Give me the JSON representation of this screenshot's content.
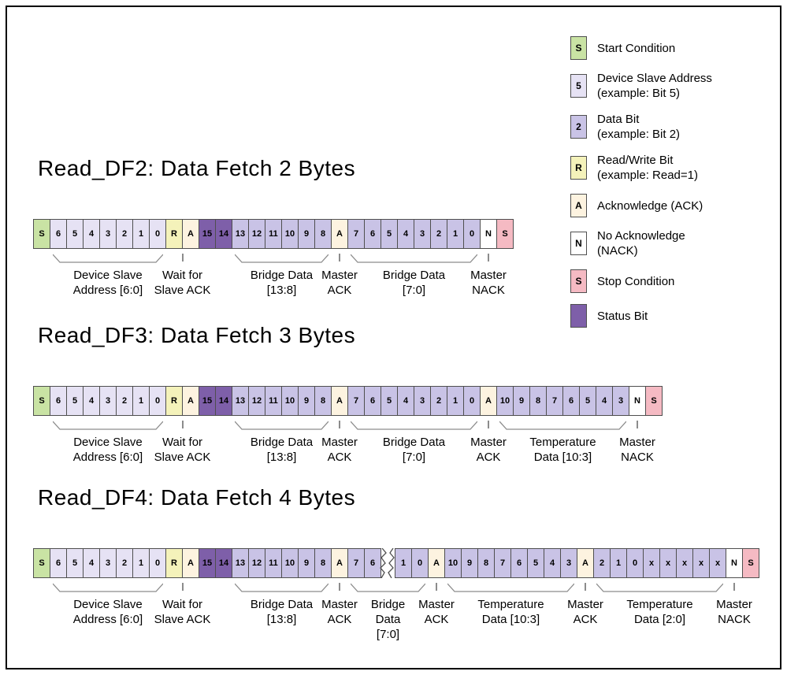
{
  "colors": {
    "start": "#c9e3a4",
    "addr": "#e6e2f4",
    "data": "#c9c3e6",
    "rw": "#f4f2ba",
    "ack": "#fdf3e0",
    "nack": "#ffffff",
    "stop": "#f5bac3",
    "status": "#7e5fa9",
    "border": "#4f4f4f",
    "marker": "#8c8c8c"
  },
  "legend": {
    "items": [
      {
        "symbol": "S",
        "type": "start",
        "lines": [
          "Start Condition"
        ]
      },
      {
        "symbol": "5",
        "type": "addr",
        "lines": [
          "Device Slave Address",
          "(example: Bit 5)"
        ]
      },
      {
        "symbol": "2",
        "type": "data",
        "lines": [
          "Data Bit",
          "(example: Bit 2)"
        ]
      },
      {
        "symbol": "R",
        "type": "rw",
        "lines": [
          "Read/Write Bit",
          "(example: Read=1)"
        ]
      },
      {
        "symbol": "A",
        "type": "ack",
        "lines": [
          "Acknowledge (ACK)"
        ]
      },
      {
        "symbol": "N",
        "type": "nack",
        "lines": [
          "No Acknowledge",
          "(NACK)"
        ]
      },
      {
        "symbol": "S",
        "type": "stop",
        "lines": [
          "Stop Condition"
        ]
      },
      {
        "symbol": "",
        "type": "status",
        "lines": [
          "Status Bit"
        ]
      }
    ]
  },
  "diagrams": [
    {
      "title": "Read_DF2: Data Fetch 2 Bytes",
      "cells": [
        {
          "t": "S",
          "c": "start"
        },
        {
          "t": "6",
          "c": "addr"
        },
        {
          "t": "5",
          "c": "addr"
        },
        {
          "t": "4",
          "c": "addr"
        },
        {
          "t": "3",
          "c": "addr"
        },
        {
          "t": "2",
          "c": "addr"
        },
        {
          "t": "1",
          "c": "addr"
        },
        {
          "t": "0",
          "c": "addr"
        },
        {
          "t": "R",
          "c": "rw"
        },
        {
          "t": "A",
          "c": "ack"
        },
        {
          "t": "15",
          "c": "status"
        },
        {
          "t": "14",
          "c": "status"
        },
        {
          "t": "13",
          "c": "data"
        },
        {
          "t": "12",
          "c": "data"
        },
        {
          "t": "11",
          "c": "data"
        },
        {
          "t": "10",
          "c": "data"
        },
        {
          "t": "9",
          "c": "data"
        },
        {
          "t": "8",
          "c": "data"
        },
        {
          "t": "A",
          "c": "ack"
        },
        {
          "t": "7",
          "c": "data"
        },
        {
          "t": "6",
          "c": "data"
        },
        {
          "t": "5",
          "c": "data"
        },
        {
          "t": "4",
          "c": "data"
        },
        {
          "t": "3",
          "c": "data"
        },
        {
          "t": "2",
          "c": "data"
        },
        {
          "t": "1",
          "c": "data"
        },
        {
          "t": "0",
          "c": "data"
        },
        {
          "t": "N",
          "c": "nack"
        },
        {
          "t": "S",
          "c": "stop"
        }
      ],
      "groups": [
        {
          "type": "brace",
          "start": 1,
          "end": 7,
          "lines": [
            "Device Slave",
            "Address [6:0]"
          ]
        },
        {
          "type": "tick",
          "start": 8,
          "end": 9,
          "lines": [
            "Wait for",
            "Slave ACK"
          ]
        },
        {
          "type": "brace",
          "start": 12,
          "end": 17,
          "lines": [
            "Bridge Data",
            "[13:8]"
          ]
        },
        {
          "type": "tick",
          "start": 18,
          "end": 18,
          "lines": [
            "Master",
            "ACK"
          ]
        },
        {
          "type": "brace",
          "start": 19,
          "end": 26,
          "lines": [
            "Bridge Data",
            "[7:0]"
          ]
        },
        {
          "type": "tick",
          "start": 27,
          "end": 27,
          "lines": [
            "Master",
            "NACK"
          ]
        }
      ]
    },
    {
      "title": "Read_DF3: Data Fetch 3 Bytes",
      "cells": [
        {
          "t": "S",
          "c": "start"
        },
        {
          "t": "6",
          "c": "addr"
        },
        {
          "t": "5",
          "c": "addr"
        },
        {
          "t": "4",
          "c": "addr"
        },
        {
          "t": "3",
          "c": "addr"
        },
        {
          "t": "2",
          "c": "addr"
        },
        {
          "t": "1",
          "c": "addr"
        },
        {
          "t": "0",
          "c": "addr"
        },
        {
          "t": "R",
          "c": "rw"
        },
        {
          "t": "A",
          "c": "ack"
        },
        {
          "t": "15",
          "c": "status"
        },
        {
          "t": "14",
          "c": "status"
        },
        {
          "t": "13",
          "c": "data"
        },
        {
          "t": "12",
          "c": "data"
        },
        {
          "t": "11",
          "c": "data"
        },
        {
          "t": "10",
          "c": "data"
        },
        {
          "t": "9",
          "c": "data"
        },
        {
          "t": "8",
          "c": "data"
        },
        {
          "t": "A",
          "c": "ack"
        },
        {
          "t": "7",
          "c": "data"
        },
        {
          "t": "6",
          "c": "data"
        },
        {
          "t": "5",
          "c": "data"
        },
        {
          "t": "4",
          "c": "data"
        },
        {
          "t": "3",
          "c": "data"
        },
        {
          "t": "2",
          "c": "data"
        },
        {
          "t": "1",
          "c": "data"
        },
        {
          "t": "0",
          "c": "data"
        },
        {
          "t": "A",
          "c": "ack"
        },
        {
          "t": "10",
          "c": "data"
        },
        {
          "t": "9",
          "c": "data"
        },
        {
          "t": "8",
          "c": "data"
        },
        {
          "t": "7",
          "c": "data"
        },
        {
          "t": "6",
          "c": "data"
        },
        {
          "t": "5",
          "c": "data"
        },
        {
          "t": "4",
          "c": "data"
        },
        {
          "t": "3",
          "c": "data"
        },
        {
          "t": "N",
          "c": "nack"
        },
        {
          "t": "S",
          "c": "stop"
        }
      ],
      "groups": [
        {
          "type": "brace",
          "start": 1,
          "end": 7,
          "lines": [
            "Device Slave",
            "Address [6:0]"
          ]
        },
        {
          "type": "tick",
          "start": 8,
          "end": 9,
          "lines": [
            "Wait for",
            "Slave ACK"
          ]
        },
        {
          "type": "brace",
          "start": 12,
          "end": 17,
          "lines": [
            "Bridge Data",
            "[13:8]"
          ]
        },
        {
          "type": "tick",
          "start": 18,
          "end": 18,
          "lines": [
            "Master",
            "ACK"
          ]
        },
        {
          "type": "brace",
          "start": 19,
          "end": 26,
          "lines": [
            "Bridge Data",
            "[7:0]"
          ]
        },
        {
          "type": "tick",
          "start": 27,
          "end": 27,
          "lines": [
            "Master",
            "ACK"
          ]
        },
        {
          "type": "brace",
          "start": 28,
          "end": 35,
          "lines": [
            "Temperature",
            "Data [10:3]"
          ]
        },
        {
          "type": "tick",
          "start": 36,
          "end": 36,
          "lines": [
            "Master",
            "NACK"
          ]
        }
      ]
    },
    {
      "title": "Read_DF4: Data Fetch 4 Bytes",
      "cells": [
        {
          "t": "S",
          "c": "start"
        },
        {
          "t": "6",
          "c": "addr"
        },
        {
          "t": "5",
          "c": "addr"
        },
        {
          "t": "4",
          "c": "addr"
        },
        {
          "t": "3",
          "c": "addr"
        },
        {
          "t": "2",
          "c": "addr"
        },
        {
          "t": "1",
          "c": "addr"
        },
        {
          "t": "0",
          "c": "addr"
        },
        {
          "t": "R",
          "c": "rw"
        },
        {
          "t": "A",
          "c": "ack"
        },
        {
          "t": "15",
          "c": "status"
        },
        {
          "t": "14",
          "c": "status"
        },
        {
          "t": "13",
          "c": "data"
        },
        {
          "t": "12",
          "c": "data"
        },
        {
          "t": "11",
          "c": "data"
        },
        {
          "t": "10",
          "c": "data"
        },
        {
          "t": "9",
          "c": "data"
        },
        {
          "t": "8",
          "c": "data"
        },
        {
          "t": "A",
          "c": "ack"
        },
        {
          "t": "7",
          "c": "data"
        },
        {
          "t": "6",
          "c": "data"
        },
        {
          "tear": true
        },
        {
          "t": "1",
          "c": "data"
        },
        {
          "t": "0",
          "c": "data"
        },
        {
          "t": "A",
          "c": "ack"
        },
        {
          "t": "10",
          "c": "data"
        },
        {
          "t": "9",
          "c": "data"
        },
        {
          "t": "8",
          "c": "data"
        },
        {
          "t": "7",
          "c": "data"
        },
        {
          "t": "6",
          "c": "data"
        },
        {
          "t": "5",
          "c": "data"
        },
        {
          "t": "4",
          "c": "data"
        },
        {
          "t": "3",
          "c": "data"
        },
        {
          "t": "A",
          "c": "ack"
        },
        {
          "t": "2",
          "c": "data"
        },
        {
          "t": "1",
          "c": "data"
        },
        {
          "t": "0",
          "c": "data"
        },
        {
          "t": "x",
          "c": "data"
        },
        {
          "t": "x",
          "c": "data"
        },
        {
          "t": "x",
          "c": "data"
        },
        {
          "t": "x",
          "c": "data"
        },
        {
          "t": "x",
          "c": "data"
        },
        {
          "t": "N",
          "c": "nack"
        },
        {
          "t": "S",
          "c": "stop"
        }
      ],
      "groups": [
        {
          "type": "brace",
          "start": 1,
          "end": 7,
          "lines": [
            "Device Slave",
            "Address [6:0]"
          ]
        },
        {
          "type": "tick",
          "start": 8,
          "end": 9,
          "lines": [
            "Wait for",
            "Slave ACK"
          ]
        },
        {
          "type": "brace",
          "start": 12,
          "end": 17,
          "lines": [
            "Bridge Data",
            "[13:8]"
          ]
        },
        {
          "type": "tick",
          "start": 18,
          "end": 18,
          "lines": [
            "Master",
            "ACK"
          ]
        },
        {
          "type": "brace",
          "start": 19,
          "end": 23,
          "lines": [
            "Bridge",
            "Data",
            "[7:0]"
          ]
        },
        {
          "type": "tick",
          "start": 24,
          "end": 24,
          "lines": [
            "Master",
            "ACK"
          ]
        },
        {
          "type": "brace",
          "start": 25,
          "end": 32,
          "lines": [
            "Temperature",
            "Data [10:3]"
          ]
        },
        {
          "type": "tick",
          "start": 33,
          "end": 33,
          "lines": [
            "Master",
            "ACK"
          ]
        },
        {
          "type": "brace",
          "start": 34,
          "end": 41,
          "lines": [
            "Temperature",
            "Data [2:0]"
          ]
        },
        {
          "type": "tick",
          "start": 42,
          "end": 42,
          "lines": [
            "Master",
            "NACK"
          ]
        }
      ]
    }
  ]
}
